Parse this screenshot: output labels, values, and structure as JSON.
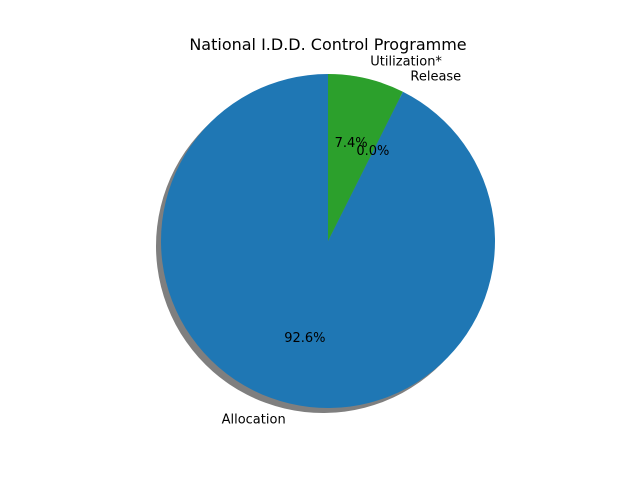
{
  "chart_data": {
    "type": "pie",
    "title": "National I.D.D. Control Programme",
    "startangle_deg": 90,
    "direction": "counterclockwise",
    "shadow": true,
    "slices": [
      {
        "label": "Allocation",
        "value": 92.6,
        "pct_label": "92.6%",
        "color": "#1f77b4"
      },
      {
        "label": "Release",
        "value": 0.0,
        "pct_label": "0.0%",
        "color": "#ff7f0e"
      },
      {
        "label": "Utilization*",
        "value": 7.4,
        "pct_label": "7.4%",
        "color": "#2ca02c"
      }
    ]
  }
}
